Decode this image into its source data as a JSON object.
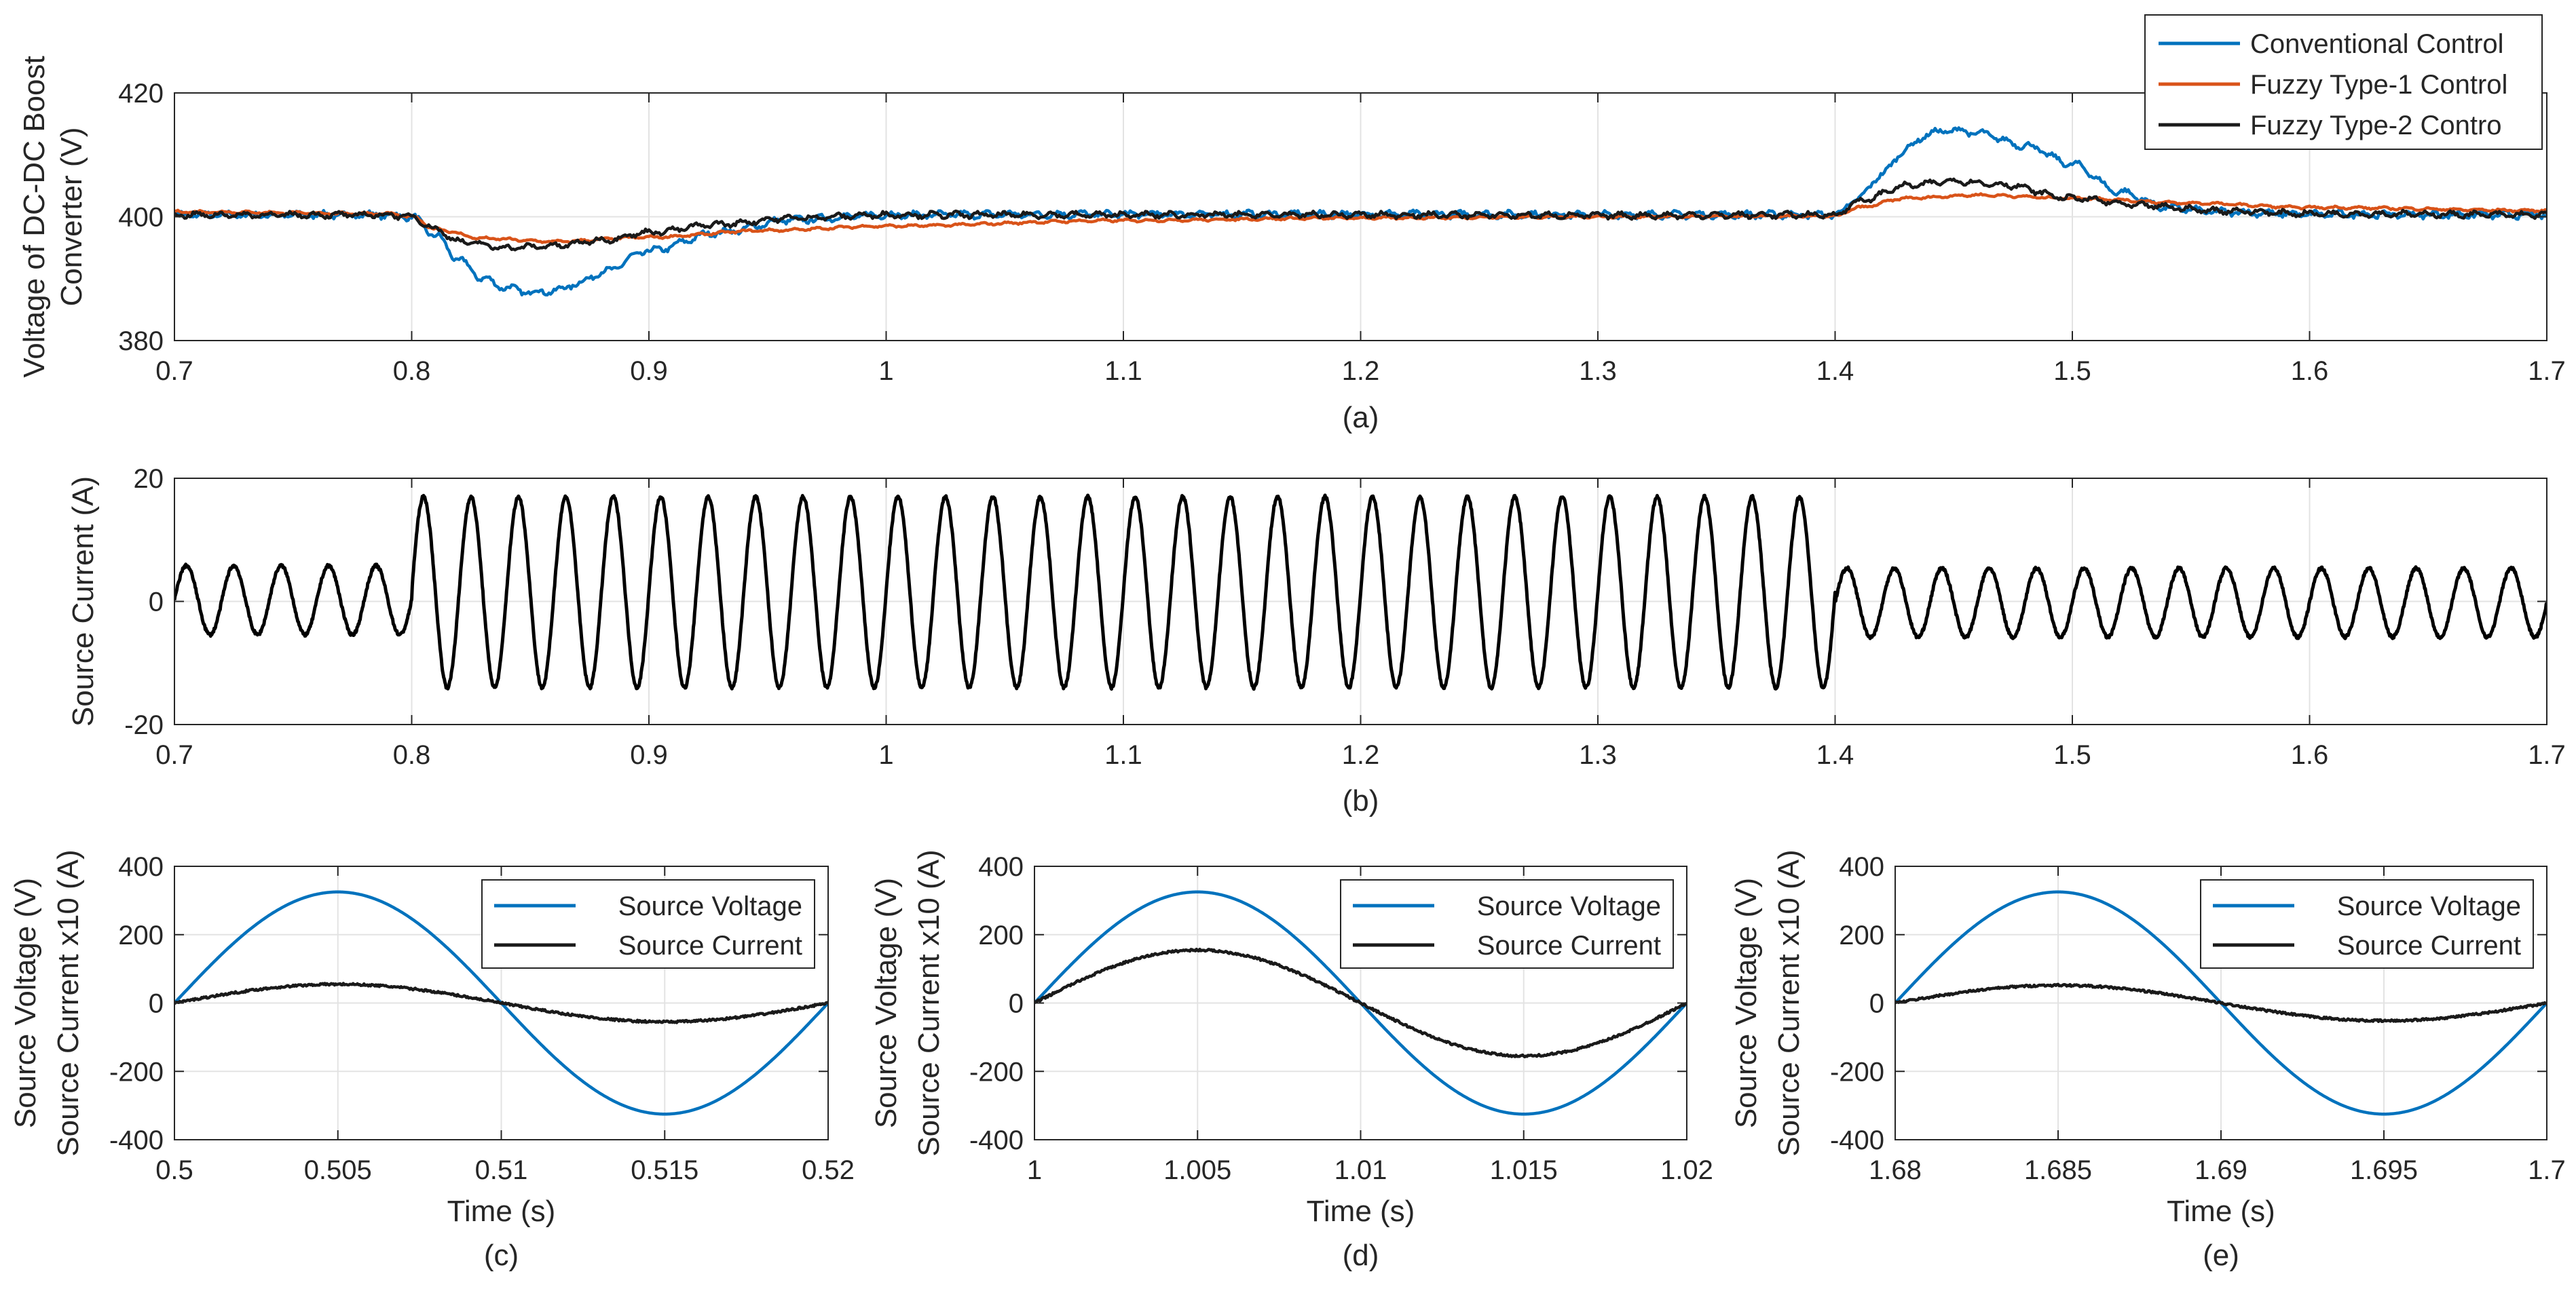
{
  "chart_data": [
    {
      "type": "line",
      "id": "a",
      "caption": "(a)",
      "xlabel": "",
      "ylabel": [
        "Voltage of DC-DC Boost",
        "Converter (V)"
      ],
      "xlim": [
        0.7,
        1.7
      ],
      "ylim": [
        380,
        420
      ],
      "xticks": [
        0.7,
        0.8,
        0.9,
        1,
        1.1,
        1.2,
        1.3,
        1.4,
        1.5,
        1.6,
        1.7
      ],
      "xtick_labels": [
        "0.7",
        "0.8",
        "0.9",
        "1",
        "1.1",
        "1.2",
        "1.3",
        "1.4",
        "1.5",
        "1.6",
        "1.7"
      ],
      "yticks": [
        380,
        400,
        420
      ],
      "ytick_labels": [
        "380",
        "400",
        "420"
      ],
      "grid": true,
      "legend_position": "top-right, outside above axes",
      "series": [
        {
          "name": "Conventional Control",
          "color": "#0072BD",
          "ripple": 0.7,
          "x": [
            0.7,
            0.79,
            0.8,
            0.81,
            0.82,
            0.83,
            0.84,
            0.85,
            0.86,
            0.87,
            0.88,
            0.9,
            0.93,
            0.96,
            1.0,
            1.1,
            1.2,
            1.3,
            1.4,
            1.41,
            1.42,
            1.43,
            1.44,
            1.45,
            1.46,
            1.48,
            1.5,
            1.52,
            1.54,
            1.56,
            1.6,
            1.7
          ],
          "y": [
            400.3,
            400.3,
            400,
            397,
            393,
            390,
            388.5,
            387.8,
            388,
            389.2,
            391,
            394.5,
            397.5,
            399.5,
            400.3,
            400.4,
            400.4,
            400.3,
            400.3,
            403,
            407,
            411,
            413.5,
            414,
            413.5,
            411.5,
            408.5,
            404,
            401.5,
            400.8,
            400.4,
            400.3
          ]
        },
        {
          "name": "Fuzzy Type-1 Control",
          "color": "#D95319",
          "ripple": 0.25,
          "x": [
            0.7,
            0.79,
            0.8,
            0.81,
            0.83,
            0.86,
            0.9,
            0.95,
            1.0,
            1.1,
            1.2,
            1.3,
            1.4,
            1.41,
            1.43,
            1.46,
            1.5,
            1.55,
            1.6,
            1.7
          ],
          "y": [
            400.8,
            400.5,
            400,
            398,
            396.5,
            396,
            396.7,
            397.8,
            398.5,
            399.4,
            399.8,
            400,
            400.1,
            401.5,
            403,
            403.5,
            403,
            402.2,
            401.5,
            401
          ]
        },
        {
          "name": "Fuzzy Type-2 Contro",
          "color": "#1A1A1A",
          "ripple": 0.6,
          "x": [
            0.7,
            0.79,
            0.8,
            0.81,
            0.82,
            0.84,
            0.86,
            0.88,
            0.9,
            0.93,
            0.96,
            1.0,
            1.1,
            1.2,
            1.3,
            1.4,
            1.41,
            1.43,
            1.45,
            1.47,
            1.5,
            1.53,
            1.56,
            1.6,
            1.7
          ],
          "y": [
            400.3,
            400.3,
            400,
            398,
            396,
            395,
            395.3,
            396.2,
            397.5,
            398.8,
            399.8,
            400.3,
            400.3,
            400.3,
            400.2,
            400.3,
            402.5,
            405,
            405.8,
            405.2,
            403,
            401.8,
            401,
            400.5,
            400.3
          ]
        }
      ]
    },
    {
      "type": "line",
      "id": "b",
      "caption": "(b)",
      "xlabel": "",
      "ylabel": [
        "Source Current (A)"
      ],
      "xlim": [
        0.7,
        1.7
      ],
      "ylim": [
        -20,
        20
      ],
      "xticks": [
        0.7,
        0.8,
        0.9,
        1,
        1.1,
        1.2,
        1.3,
        1.4,
        1.5,
        1.6,
        1.7
      ],
      "xtick_labels": [
        "0.7",
        "0.8",
        "0.9",
        "1",
        "1.1",
        "1.2",
        "1.3",
        "1.4",
        "1.5",
        "1.6",
        "1.7"
      ],
      "yticks": [
        -20,
        0,
        20
      ],
      "ytick_labels": [
        "-20",
        "0",
        "20"
      ],
      "grid": true,
      "series": [
        {
          "name": "Source Current",
          "color": "#000000",
          "frequency_hz": 50,
          "segments": [
            {
              "t0": 0.7,
              "t1": 0.8,
              "amplitude": 5.6,
              "offset": 0.2
            },
            {
              "t0": 0.8,
              "t1": 1.4,
              "amplitude": 15.5,
              "offset": 1.5
            },
            {
              "t0": 1.4,
              "t1": 1.7,
              "amplitude": 5.6,
              "offset": -0.2
            }
          ]
        }
      ]
    },
    {
      "type": "line",
      "id": "c",
      "caption": "(c)",
      "xlabel": "Time (s)",
      "ylabel": [
        "Source Voltage (V)",
        "Source Current  x10 (A)"
      ],
      "xlim": [
        0.5,
        0.52
      ],
      "ylim": [
        -400,
        400
      ],
      "xticks": [
        0.5,
        0.505,
        0.51,
        0.515,
        0.52
      ],
      "xtick_labels": [
        "0.5",
        "0.505",
        "0.51",
        "0.515",
        "0.52"
      ],
      "yticks": [
        -400,
        -200,
        0,
        200,
        400
      ],
      "ytick_labels": [
        "-400",
        "-200",
        "0",
        "200",
        "400"
      ],
      "grid": true,
      "legend_position": "top-right",
      "series": [
        {
          "name": "Source Voltage",
          "color": "#0072BD",
          "frequency_hz": 50,
          "amplitude": 325,
          "phase_deg": 0,
          "t0": 0.5
        },
        {
          "name": "Source Current",
          "color": "#1A1A1A",
          "frequency_hz": 50,
          "amplitude": 55,
          "phase_deg": 0,
          "t0": 0.5
        }
      ]
    },
    {
      "type": "line",
      "id": "d",
      "caption": "(d)",
      "xlabel": "Time (s)",
      "ylabel": [
        "Source Voltage (V)",
        "Source Current  x10 (A)"
      ],
      "xlim": [
        1,
        1.02
      ],
      "ylim": [
        -400,
        400
      ],
      "xticks": [
        1,
        1.005,
        1.01,
        1.015,
        1.02
      ],
      "xtick_labels": [
        "1",
        "1.005",
        "1.01",
        "1.015",
        "1.02"
      ],
      "yticks": [
        -400,
        -200,
        0,
        200,
        400
      ],
      "ytick_labels": [
        "-400",
        "-200",
        "0",
        "200",
        "400"
      ],
      "grid": true,
      "legend_position": "top-right",
      "series": [
        {
          "name": "Source Voltage",
          "color": "#0072BD",
          "frequency_hz": 50,
          "amplitude": 325,
          "phase_deg": 0,
          "t0": 1
        },
        {
          "name": "Source Current",
          "color": "#1A1A1A",
          "frequency_hz": 50,
          "amplitude": 155,
          "phase_deg": 0,
          "t0": 1
        }
      ]
    },
    {
      "type": "line",
      "id": "e",
      "caption": "(e)",
      "xlabel": "Time (s)",
      "ylabel": [
        "Source Voltage (V)",
        "Source Current  x10 (A)"
      ],
      "xlim": [
        1.68,
        1.7
      ],
      "ylim": [
        -400,
        400
      ],
      "xticks": [
        1.68,
        1.685,
        1.69,
        1.695,
        1.7
      ],
      "xtick_labels": [
        "1.68",
        "1.685",
        "1.69",
        "1.695",
        "1.7"
      ],
      "yticks": [
        -400,
        -200,
        0,
        200,
        400
      ],
      "ytick_labels": [
        "-400",
        "-200",
        "0",
        "200",
        "400"
      ],
      "grid": true,
      "legend_position": "top-right",
      "series": [
        {
          "name": "Source Voltage",
          "color": "#0072BD",
          "frequency_hz": 50,
          "amplitude": 325,
          "phase_deg": 0,
          "t0": 1.68
        },
        {
          "name": "Source Current",
          "color": "#1A1A1A",
          "frequency_hz": 50,
          "amplitude": 52,
          "phase_deg": 0,
          "t0": 1.68
        }
      ]
    }
  ]
}
